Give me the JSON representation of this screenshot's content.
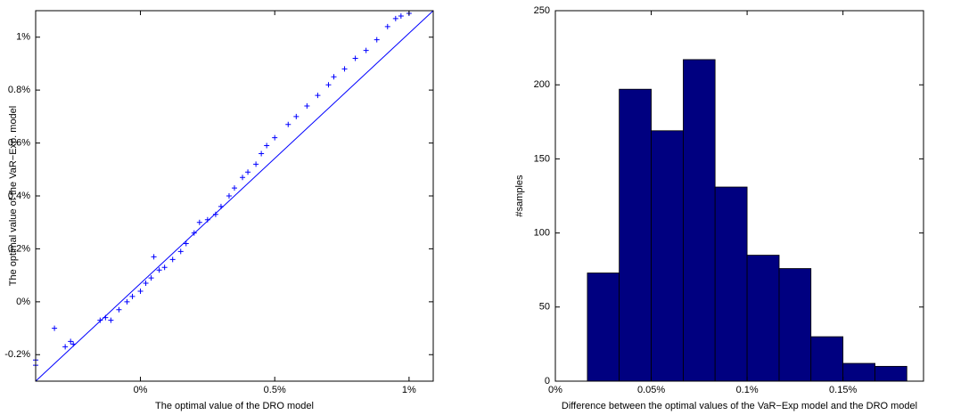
{
  "chart_data": [
    {
      "type": "scatter",
      "x_label": "The optimal value of the DRO model",
      "y_label": "The optimal value of the VaR−Exp. model",
      "xlim": [
        -0.39,
        1.09
      ],
      "ylim": [
        -0.3,
        1.1
      ],
      "xticks": [
        {
          "value": 0,
          "label": "0%"
        },
        {
          "value": 0.5,
          "label": "0.5%"
        },
        {
          "value": 1,
          "label": "1%"
        }
      ],
      "yticks": [
        {
          "value": -0.2,
          "label": "-0.2%"
        },
        {
          "value": 0,
          "label": "0%"
        },
        {
          "value": 0.2,
          "label": "0.2%"
        },
        {
          "value": 0.4,
          "label": "0.4%"
        },
        {
          "value": 0.6,
          "label": "0.6%"
        },
        {
          "value": 0.8,
          "label": "0.8%"
        },
        {
          "value": 1,
          "label": "1%"
        }
      ],
      "series": [
        {
          "color": "#0000ff",
          "marker": "+",
          "x": [
            -0.39,
            -0.39,
            -0.32,
            -0.28,
            -0.26,
            -0.25,
            -0.15,
            -0.13,
            -0.11,
            -0.08,
            -0.05,
            -0.03,
            0.0,
            0.02,
            0.04,
            0.05,
            0.07,
            0.09,
            0.12,
            0.15,
            0.17,
            0.2,
            0.22,
            0.25,
            0.28,
            0.3,
            0.33,
            0.35,
            0.38,
            0.4,
            0.43,
            0.45,
            0.47,
            0.5,
            0.55,
            0.58,
            0.62,
            0.66,
            0.7,
            0.72,
            0.76,
            0.8,
            0.84,
            0.88,
            0.92,
            0.95,
            0.97,
            1.0
          ],
          "values": [
            -0.24,
            -0.22,
            -0.1,
            -0.17,
            -0.15,
            -0.16,
            -0.07,
            -0.06,
            -0.07,
            -0.03,
            0.0,
            0.02,
            0.04,
            0.07,
            0.09,
            0.17,
            0.12,
            0.13,
            0.16,
            0.19,
            0.22,
            0.26,
            0.3,
            0.31,
            0.33,
            0.36,
            0.4,
            0.43,
            0.47,
            0.49,
            0.52,
            0.56,
            0.59,
            0.62,
            0.67,
            0.7,
            0.74,
            0.78,
            0.82,
            0.85,
            0.88,
            0.92,
            0.95,
            0.99,
            1.04,
            1.07,
            1.08,
            1.09
          ]
        },
        {
          "color": "#0000ff",
          "marker": "line",
          "x": [
            -0.39,
            1.09
          ],
          "values": [
            -0.3,
            1.1
          ]
        }
      ]
    },
    {
      "type": "histogram",
      "x_label": "Difference between the optimal values of the VaR−Exp model and the DRO model",
      "y_label": "#samples",
      "color": "#000080",
      "xlim": [
        0,
        0.192
      ],
      "ylim": [
        0,
        250
      ],
      "xticks": [
        {
          "value": 0,
          "label": "0%"
        },
        {
          "value": 0.05,
          "label": "0.05%"
        },
        {
          "value": 0.1,
          "label": "0.1%"
        },
        {
          "value": 0.15,
          "label": "0.15%"
        }
      ],
      "yticks": [
        0,
        50,
        100,
        150,
        200,
        250
      ],
      "bins": [
        0.0167,
        0.0333,
        0.05,
        0.0667,
        0.0833,
        0.1,
        0.1167,
        0.1333,
        0.15,
        0.1667,
        0.1833
      ],
      "values": [
        73,
        197,
        169,
        217,
        131,
        85,
        76,
        30,
        12,
        10
      ]
    }
  ]
}
